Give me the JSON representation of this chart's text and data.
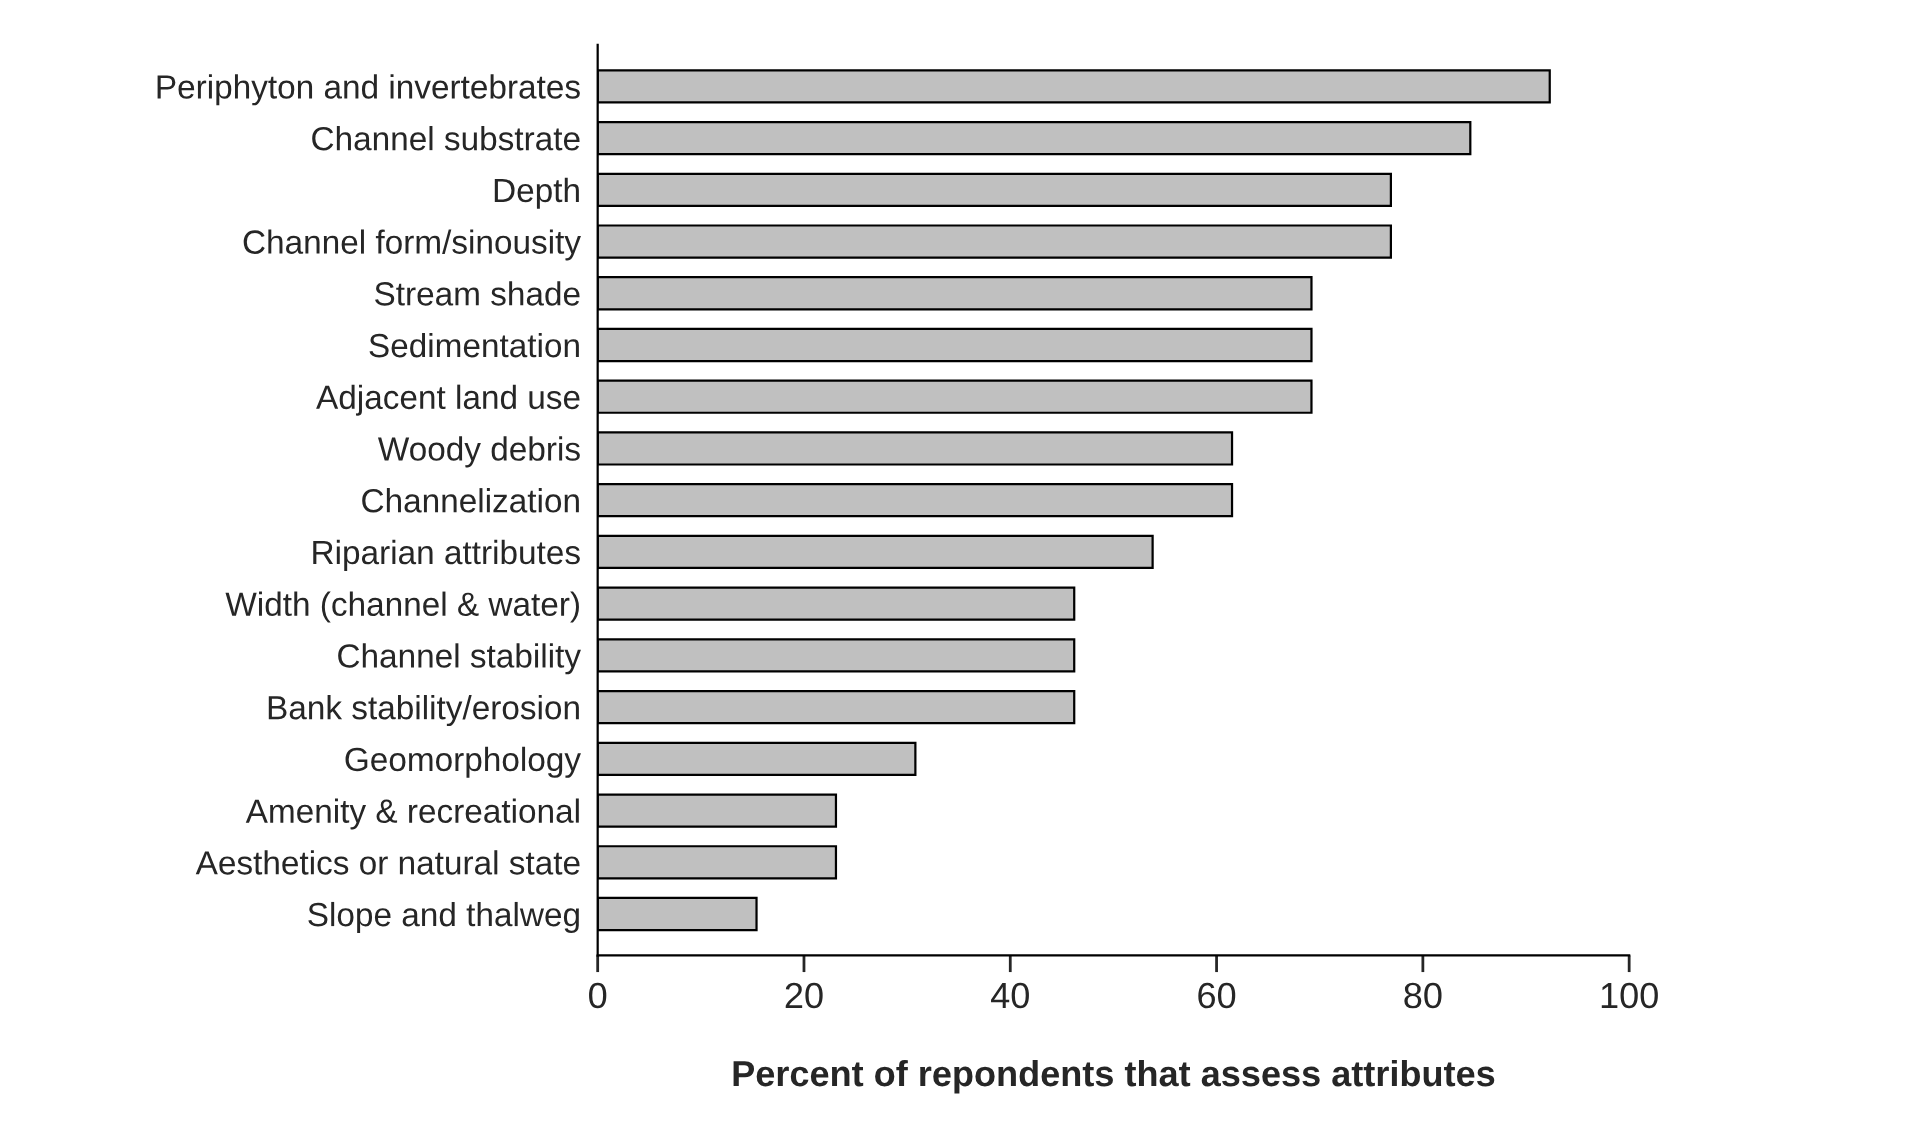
{
  "chart_data": {
    "type": "bar",
    "orientation": "horizontal",
    "xlabel": "Percent of repondents that assess attributes",
    "categories": [
      "Periphyton and invertebrates",
      "Channel substrate",
      "Depth",
      "Channel form/sinousity",
      "Stream shade",
      "Sedimentation",
      "Adjacent land use",
      "Woody debris",
      "Channelization",
      "Riparian attributes",
      "Width (channel & water)",
      "Channel stability",
      "Bank stability/erosion",
      "Geomorphology",
      "Amenity & recreational",
      "Aesthetics or natural state",
      "Slope and thalweg"
    ],
    "values": [
      92.3,
      84.6,
      76.9,
      76.9,
      69.2,
      69.2,
      69.2,
      61.5,
      61.5,
      53.8,
      46.2,
      46.2,
      46.2,
      30.8,
      23.1,
      23.1,
      15.4
    ],
    "color": "#c0c0c0",
    "xlim": [
      0,
      100
    ],
    "xticks": [
      0,
      20,
      40,
      60,
      80,
      100
    ],
    "grid": false,
    "legend": false
  }
}
